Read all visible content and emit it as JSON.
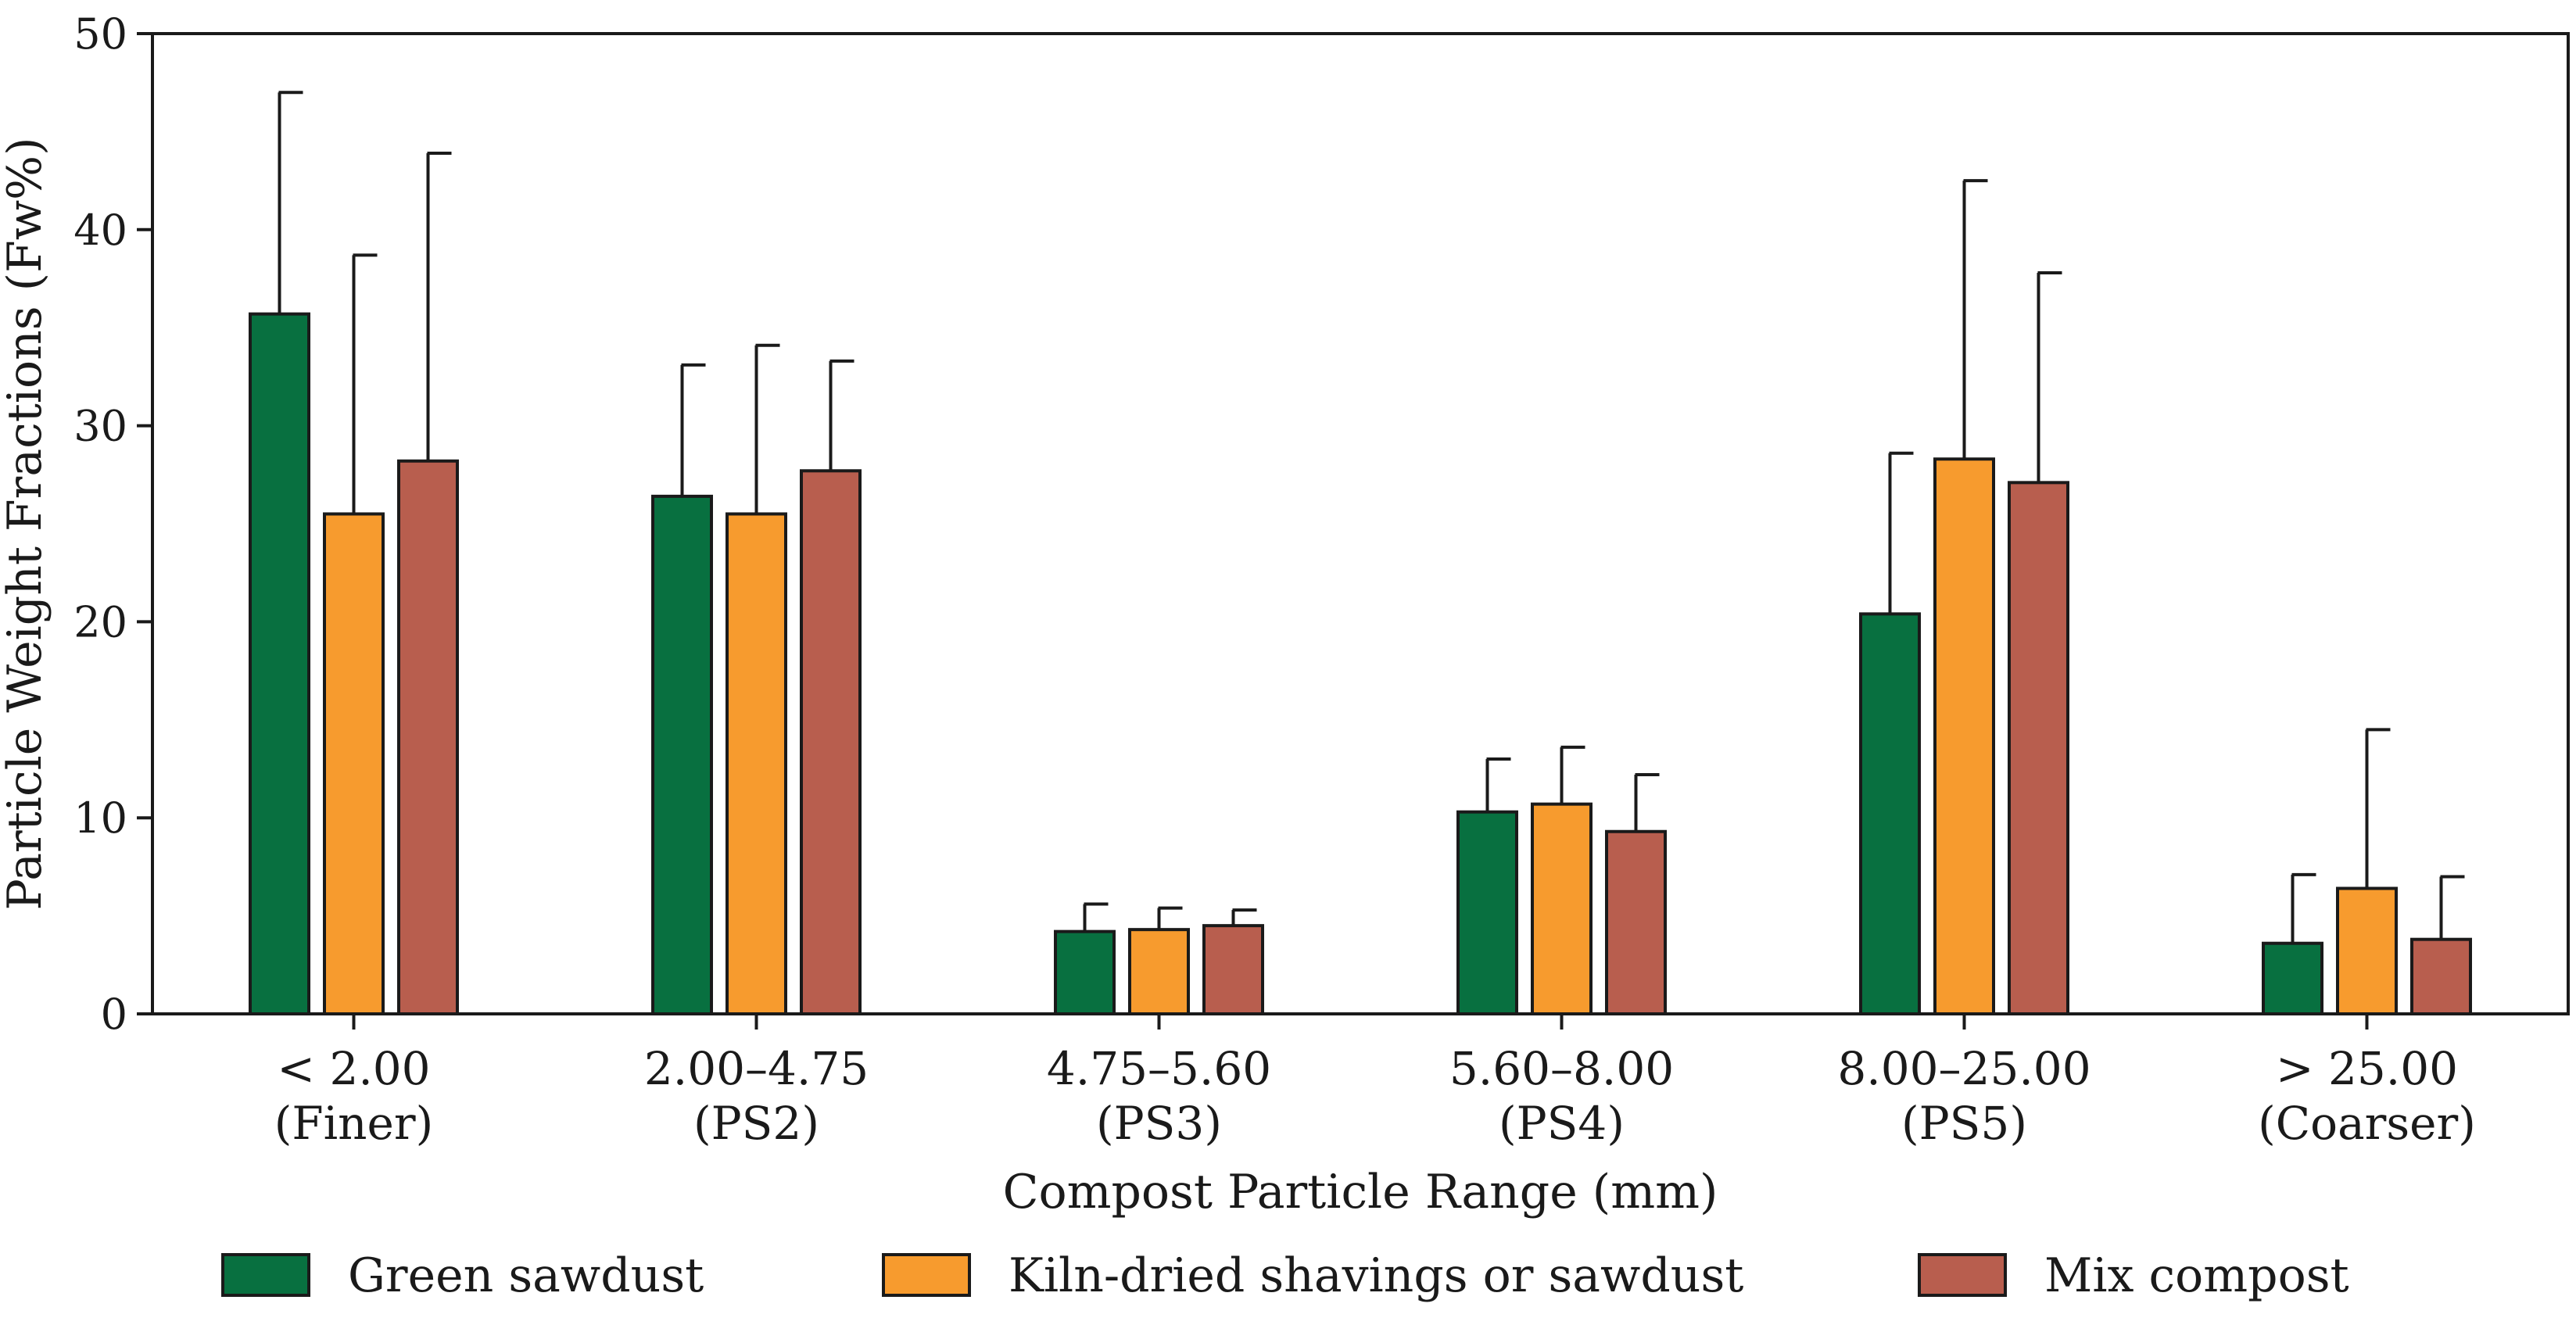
{
  "chart_data": {
    "type": "bar",
    "title": "",
    "xlabel": "Compost Particle Range (mm)",
    "ylabel": "Particle Weight Fractions (Fw%)",
    "ylim": [
      0,
      50
    ],
    "yticks": [
      0,
      10,
      20,
      30,
      40,
      50
    ],
    "grid": false,
    "legend_position": "bottom",
    "categories": [
      [
        "< 2.00",
        "(Finer)"
      ],
      [
        "2.00–4.75",
        "(PS2)"
      ],
      [
        "4.75–5.60",
        "(PS3)"
      ],
      [
        "5.60–8.00",
        "(PS4)"
      ],
      [
        "8.00–25.00",
        "(PS5)"
      ],
      [
        "> 25.00",
        "(Coarser)"
      ]
    ],
    "series": [
      {
        "name": "Green sawdust",
        "color": "#087040",
        "values": [
          35.7,
          26.4,
          4.2,
          10.3,
          20.4,
          3.6
        ],
        "error_upper": [
          47.0,
          33.1,
          5.6,
          13.0,
          28.6,
          7.1
        ]
      },
      {
        "name": "Kiln-dried shavings or sawdust",
        "color": "#F79B2E",
        "values": [
          25.5,
          25.5,
          4.3,
          10.7,
          28.3,
          6.4
        ],
        "error_upper": [
          38.7,
          34.1,
          5.4,
          13.6,
          42.5,
          14.5
        ]
      },
      {
        "name": "Mix compost",
        "color": "#B85E4E",
        "values": [
          28.2,
          27.7,
          4.5,
          9.3,
          27.1,
          3.8
        ],
        "error_upper": [
          43.9,
          33.3,
          5.3,
          12.2,
          37.8,
          7.0
        ]
      }
    ]
  }
}
